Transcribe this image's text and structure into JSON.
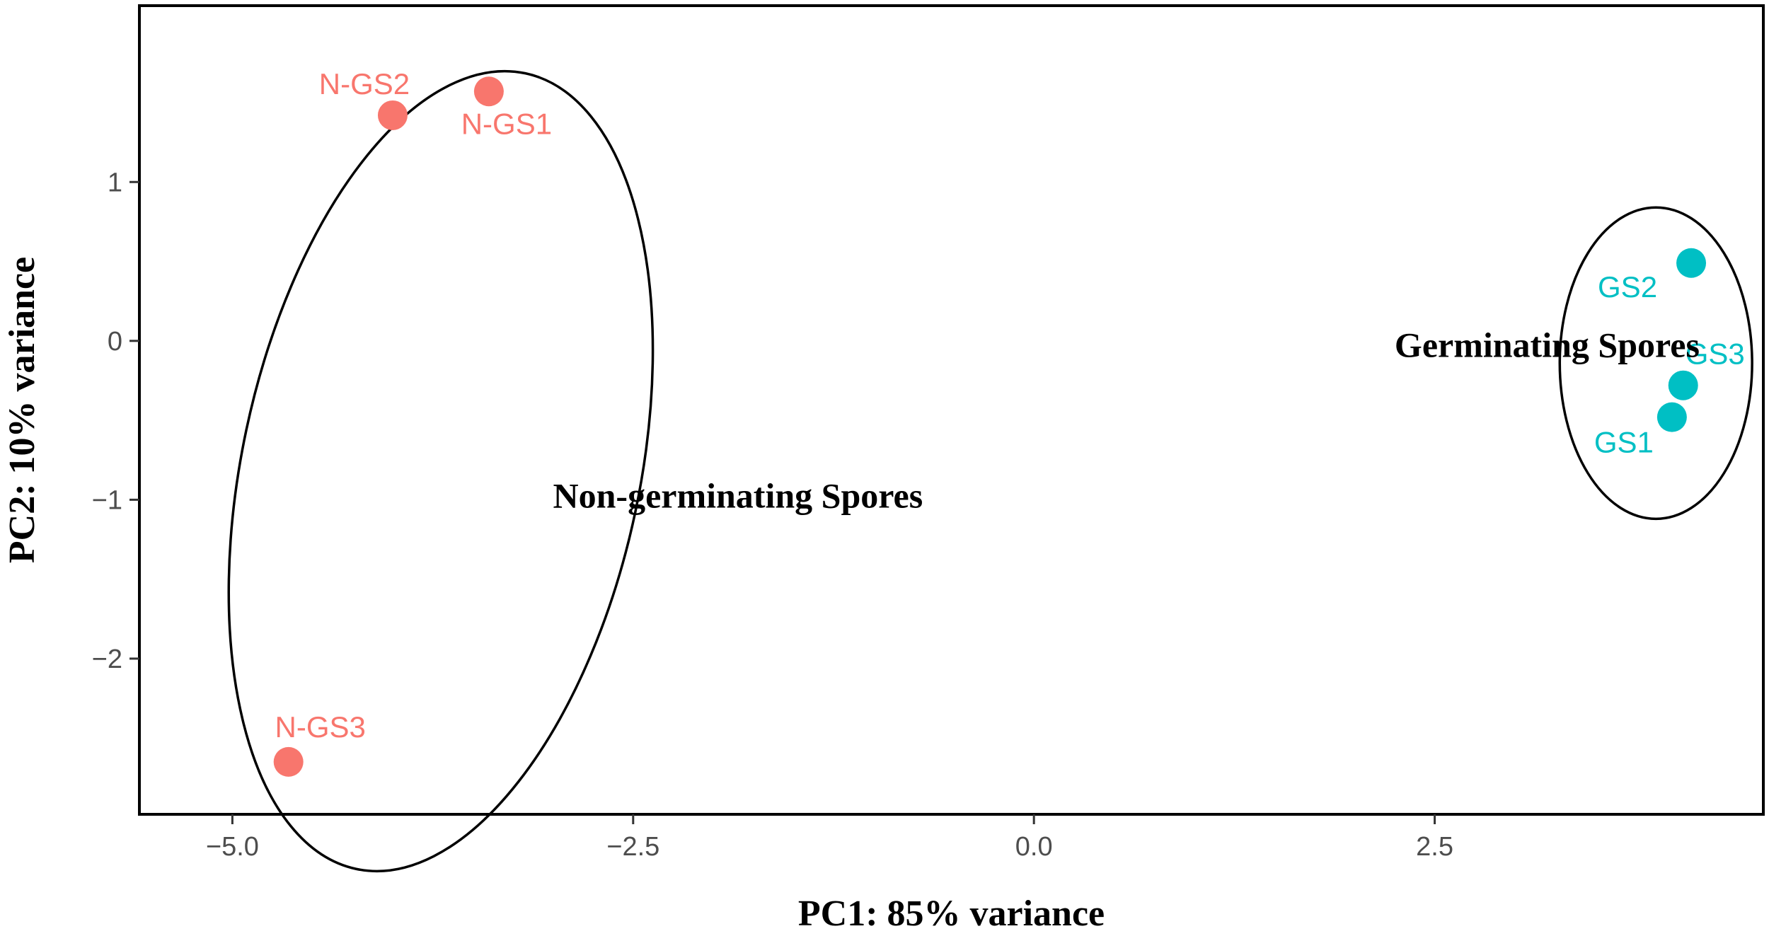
{
  "chart_data": {
    "type": "scatter",
    "title": "",
    "xlabel": "PC1: 85% variance",
    "ylabel": "PC2: 10% variance",
    "xlim": [
      -5.58,
      4.55
    ],
    "ylim": [
      -2.98,
      2.11
    ],
    "xticks": [
      -5.0,
      -2.5,
      0.0,
      2.5
    ],
    "xtick_labels": [
      "−5.0",
      "−2.5",
      "0.0",
      "2.5"
    ],
    "yticks": [
      -2,
      -1,
      0,
      1
    ],
    "ytick_labels": [
      "−2",
      "−1",
      "0",
      "1"
    ],
    "grid": false,
    "series": [
      {
        "color": "#F8766D",
        "points": [
          {
            "label": "N-GS2",
            "x": -4.0,
            "y": 1.42
          },
          {
            "label": "N-GS1",
            "x": -3.4,
            "y": 1.57
          },
          {
            "label": "N-GS3",
            "x": -4.65,
            "y": -2.65
          }
        ]
      },
      {
        "color": "#00BFC4",
        "points": [
          {
            "label": "GS2",
            "x": 4.1,
            "y": 0.49
          },
          {
            "label": "GS3",
            "x": 4.05,
            "y": -0.28
          },
          {
            "label": "GS1",
            "x": 3.98,
            "y": -0.48
          }
        ]
      }
    ],
    "annotations": [
      {
        "text": "Non-germinating Spores",
        "x": -3.0,
        "y": -1.05
      },
      {
        "text": "Germinating Spores",
        "x": 2.25,
        "y": -0.1
      }
    ],
    "ellipses": [
      {
        "group": "Non-germinating Spores",
        "cx": -3.7,
        "cy": -0.82,
        "rx": 1.24,
        "ry": 2.56,
        "rotation": 12
      },
      {
        "group": "Germinating Spores",
        "cx": 3.88,
        "cy": -0.14,
        "rx": 0.6,
        "ry": 0.98,
        "rotation": 0
      }
    ]
  }
}
